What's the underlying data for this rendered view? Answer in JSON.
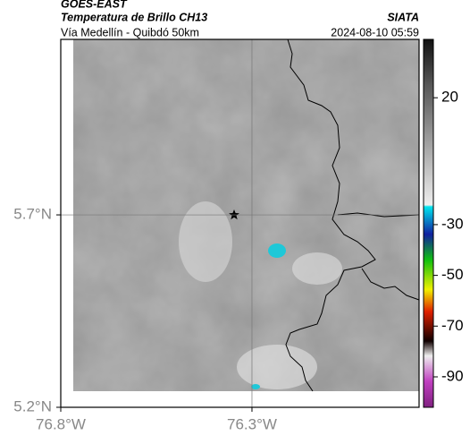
{
  "header": {
    "source": "GOES-EAST",
    "product": "Temperatura de Brillo CH13",
    "route": "Vía Medellín - Quibdó 50km",
    "agency": "SIATA",
    "timestamp": "2024-08-10 05:59"
  },
  "map": {
    "latlim": [
      5.2,
      6.156
    ],
    "lonlim": [
      -76.8,
      -75.863
    ],
    "lat_ticks": [
      {
        "value": 5.7,
        "label": "5.7°N"
      },
      {
        "value": 5.2,
        "label": "5.2°N"
      }
    ],
    "lon_ticks": [
      {
        "value": -76.8,
        "label": "76.8°W"
      },
      {
        "value": -76.3,
        "label": "76.3°W"
      }
    ],
    "grid": true
  },
  "colorbar": {
    "clim": [
      -102,
      43
    ],
    "ticks": [
      20,
      -30,
      -50,
      -70,
      -90
    ]
  }
}
